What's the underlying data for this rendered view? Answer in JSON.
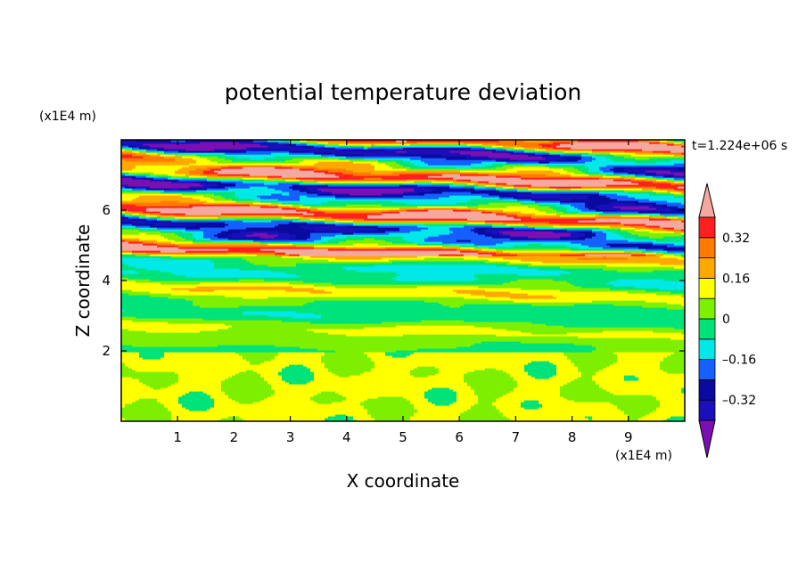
{
  "chart_data": {
    "type": "heatmap",
    "title": "potential temperature deviation",
    "time_label": "t=1.224e+06 s",
    "xlabel": "X coordinate",
    "ylabel": "Z coordinate",
    "x_unit": "(x1E4 m)",
    "y_unit": "(x1E4 m)",
    "xlim": [
      0,
      10
    ],
    "ylim": [
      0,
      8
    ],
    "x_ticks": [
      1,
      2,
      3,
      4,
      5,
      6,
      7,
      8,
      9
    ],
    "y_ticks": [
      2,
      4,
      6
    ],
    "grid": false,
    "colorbar": {
      "orientation": "vertical",
      "extend": "both",
      "levels": [
        -0.4,
        -0.32,
        -0.24,
        -0.16,
        -0.08,
        0,
        0.08,
        0.16,
        0.24,
        0.32,
        0.4
      ],
      "labels": [
        {
          "value": 0.32,
          "text": "0.32"
        },
        {
          "value": 0.16,
          "text": "0.16"
        },
        {
          "value": 0,
          "text": "0"
        },
        {
          "value": -0.16,
          "text": "–0.16"
        },
        {
          "value": -0.32,
          "text": "–0.32"
        }
      ],
      "colors": [
        "#7a0fb2",
        "#1a0fb8",
        "#0a0aa0",
        "#1560ff",
        "#00e8e8",
        "#00e37a",
        "#7cf000",
        "#ffff00",
        "#ffa800",
        "#ff7a00",
        "#ff2020",
        "#f5a8a0"
      ]
    }
  }
}
